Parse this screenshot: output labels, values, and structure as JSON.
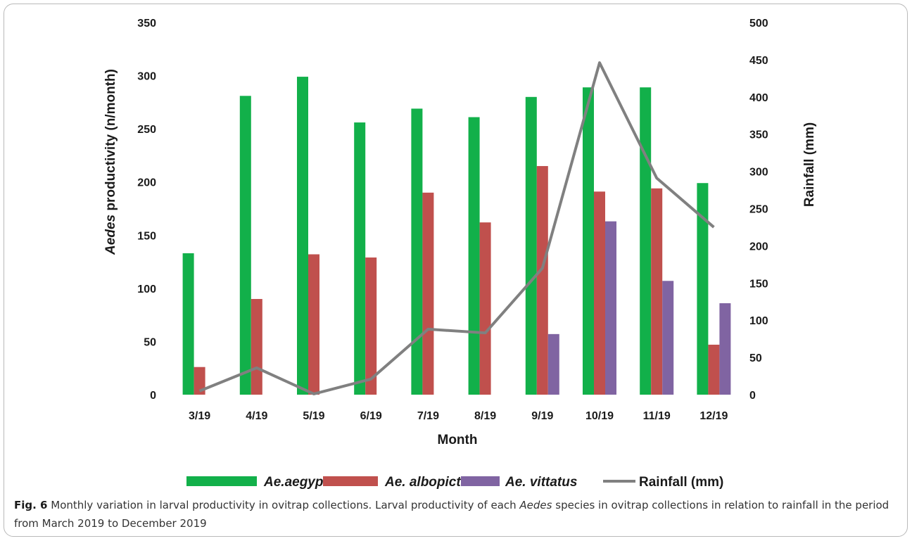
{
  "chart_data": {
    "type": "bar",
    "x_label": "Month",
    "y_left_label": {
      "italic": "Aedes",
      "rest": " productivity (n/month)"
    },
    "y_right_label": "Rainfall (mm)",
    "categories": [
      "3/19",
      "4/19",
      "5/19",
      "6/19",
      "7/19",
      "8/19",
      "9/19",
      "10/19",
      "11/19",
      "12/19"
    ],
    "y_left_range": [
      0,
      350
    ],
    "y_left_ticks": [
      0,
      50,
      100,
      150,
      200,
      250,
      300,
      350
    ],
    "y_right_range": [
      0,
      500
    ],
    "y_right_ticks": [
      0,
      50,
      100,
      150,
      200,
      250,
      300,
      350,
      400,
      450,
      500
    ],
    "grid": false,
    "legend_position": "bottom",
    "series": [
      {
        "name": "Ae.aegypti",
        "type": "bar",
        "axis": "left",
        "color": "#12b04a",
        "values": [
          133,
          281,
          299,
          256,
          269,
          261,
          280,
          289,
          289,
          199
        ]
      },
      {
        "name": "Ae. albopictus",
        "type": "bar",
        "axis": "left",
        "color": "#c0504d",
        "values": [
          26,
          90,
          132,
          129,
          190,
          162,
          215,
          191,
          194,
          47
        ]
      },
      {
        "name": "Ae. vittatus",
        "type": "bar",
        "axis": "left",
        "color": "#8064a2",
        "values": [
          0,
          0,
          0,
          0,
          0,
          0,
          57,
          163,
          107,
          86
        ]
      },
      {
        "name": "Rainfall (mm)",
        "type": "line",
        "axis": "right",
        "color": "#808080",
        "values": [
          5,
          36,
          1,
          21,
          88,
          83,
          170,
          446,
          291,
          225
        ]
      }
    ]
  },
  "caption": {
    "label": "Fig. 6",
    "text_before_italic": "  Monthly variation in larval productivity in ovitrap collections. Larval productivity of each ",
    "italic": "Aedes",
    "text_after_italic": " species in ovitrap collections in relation to rainfall in the period from March 2019 to December 2019"
  }
}
